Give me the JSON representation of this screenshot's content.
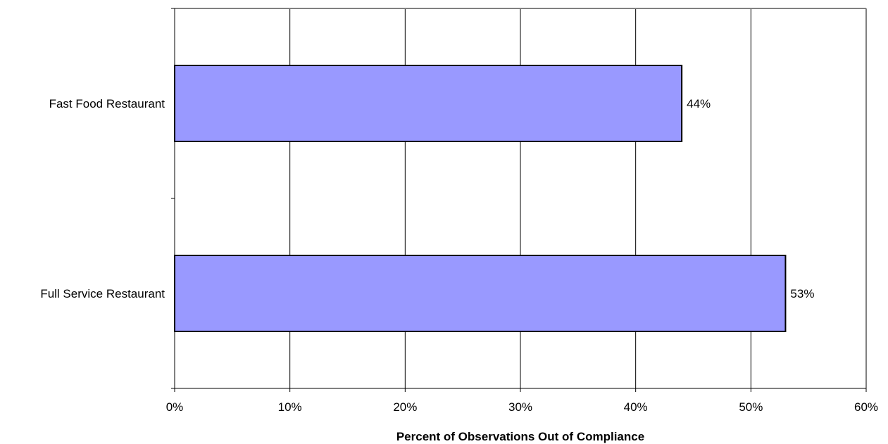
{
  "chart_data": {
    "type": "bar",
    "orientation": "horizontal",
    "categories": [
      "Fast Food Restaurant",
      "Full Service Restaurant"
    ],
    "values": [
      44,
      53
    ],
    "data_labels": [
      "44%",
      "53%"
    ],
    "xlabel": "Percent of Observations Out of Compliance",
    "ylabel": "",
    "xlim": [
      0,
      60
    ],
    "x_ticks": [
      0,
      10,
      20,
      30,
      40,
      50,
      60
    ],
    "x_tick_labels": [
      "0%",
      "10%",
      "20%",
      "30%",
      "40%",
      "50%",
      "60%"
    ],
    "grid": true,
    "legend": false
  },
  "colors": {
    "bar_fill": "#9999ff",
    "bar_stroke": "#000000",
    "gridline": "#000000",
    "plot_border": "#808080",
    "axis": "#000000"
  }
}
